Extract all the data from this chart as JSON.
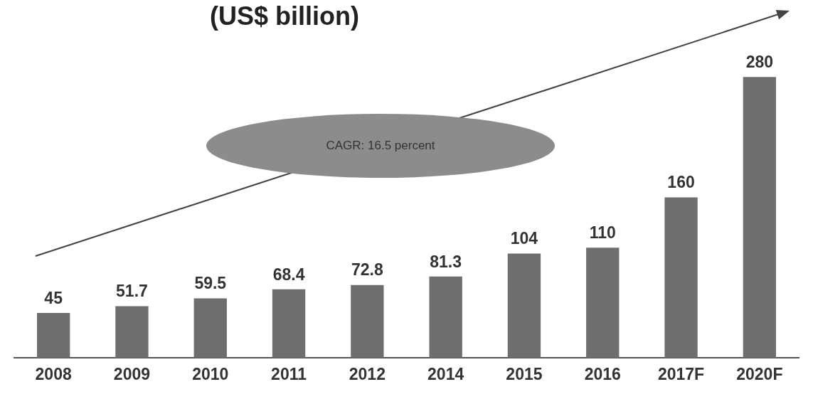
{
  "chart_data": {
    "type": "bar",
    "title": "(US$ billion)",
    "categories": [
      "2008",
      "2009",
      "2010",
      "2011",
      "2012",
      "2014",
      "2015",
      "2016",
      "2017F",
      "2020F"
    ],
    "values": [
      45,
      51.7,
      59.5,
      68.4,
      72.8,
      81.3,
      104,
      110,
      160,
      280
    ],
    "color": "#6e6e6e",
    "data_labels": true,
    "grid": false,
    "legend": false,
    "tick_labels": "x",
    "annotations": [
      "CAGR: 16.5 percent"
    ]
  }
}
